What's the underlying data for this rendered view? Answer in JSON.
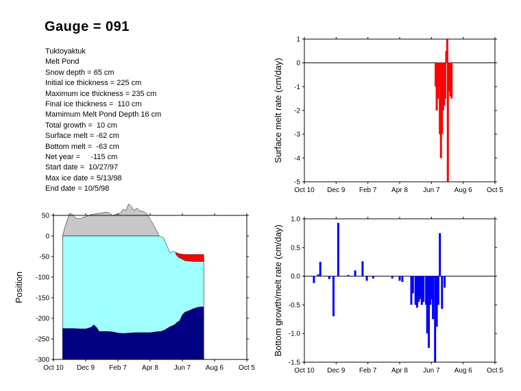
{
  "title": "Gauge = 091",
  "info_lines": [
    "Tuktoyaktuk",
    "Melt Pond",
    "Snow depth = 65 cm",
    "Initial ice thickness = 225 cm",
    "Maximum ice thickness = 235 cm",
    "Final ice thickness =  110 cm",
    "Mamimum Melt Pond Depth 16 cm",
    "Total growth =  10 cm",
    "Surface melt = -62 cm",
    "Bottom melt =  -63 cm",
    "Net year =     -115 cm",
    "Start date =  10/27/97",
    "Max ice date = 5/13/98",
    "End date = 10/5/98"
  ],
  "colors": {
    "snow": "#c8c8c8",
    "ice": "#a0ffff",
    "bottom": "#000080",
    "pond": "#ff0000",
    "surface_bars": "#ff0000",
    "bottom_bars": "#0000ff"
  },
  "chart_data": [
    {
      "type": "area",
      "id": "position",
      "ylabel": "Position",
      "x_ticks": [
        "Oct 10",
        "Dec 9",
        "Feb 7",
        "Apr 8",
        "Jun 7",
        "Aug 6",
        "Oct 5"
      ],
      "x_range_days": [
        0,
        360
      ],
      "ylim": [
        -300,
        50
      ],
      "y_ticks": [
        50,
        0,
        -50,
        -100,
        -150,
        -200,
        -250,
        -300
      ],
      "series": {
        "snow_top": [
          [
            17,
            0
          ],
          [
            22,
            25
          ],
          [
            30,
            55
          ],
          [
            36,
            52
          ],
          [
            40,
            45
          ],
          [
            45,
            42
          ],
          [
            50,
            42
          ],
          [
            55,
            45
          ],
          [
            62,
            48
          ],
          [
            70,
            52
          ],
          [
            85,
            55
          ],
          [
            100,
            58
          ],
          [
            105,
            55
          ],
          [
            110,
            50
          ],
          [
            125,
            56
          ],
          [
            130,
            65
          ],
          [
            135,
            62
          ],
          [
            140,
            78
          ],
          [
            145,
            72
          ],
          [
            150,
            62
          ],
          [
            155,
            68
          ],
          [
            160,
            62
          ],
          [
            165,
            60
          ],
          [
            170,
            58
          ],
          [
            175,
            52
          ],
          [
            180,
            40
          ],
          [
            185,
            30
          ],
          [
            190,
            18
          ],
          [
            195,
            5
          ],
          [
            197,
            0
          ]
        ],
        "ice_top": [
          [
            17,
            0
          ],
          [
            197,
            0
          ],
          [
            205,
            -5
          ],
          [
            210,
            -20
          ],
          [
            215,
            -35
          ],
          [
            218,
            -42
          ],
          [
            220,
            -40
          ],
          [
            222,
            -37
          ],
          [
            228,
            -40
          ],
          [
            233,
            -45
          ],
          [
            240,
            -47
          ],
          [
            260,
            -48
          ],
          [
            270,
            -49
          ],
          [
            280,
            -50
          ]
        ],
        "pond_top": [
          [
            228,
            -40
          ],
          [
            233,
            -43
          ],
          [
            238,
            -44
          ],
          [
            245,
            -45
          ],
          [
            260,
            -45
          ],
          [
            270,
            -45
          ],
          [
            280,
            -45
          ]
        ],
        "pond_bottom": [
          [
            228,
            -45
          ],
          [
            233,
            -52
          ],
          [
            238,
            -55
          ],
          [
            245,
            -60
          ],
          [
            260,
            -62
          ],
          [
            270,
            -62
          ],
          [
            280,
            -62
          ]
        ],
        "ice_bottom": [
          [
            17,
            -225
          ],
          [
            40,
            -225
          ],
          [
            50,
            -226
          ],
          [
            60,
            -226
          ],
          [
            70,
            -222
          ],
          [
            75,
            -216
          ],
          [
            80,
            -222
          ],
          [
            85,
            -232
          ],
          [
            100,
            -232
          ],
          [
            110,
            -233
          ],
          [
            120,
            -236
          ],
          [
            130,
            -237
          ],
          [
            140,
            -236
          ],
          [
            150,
            -235
          ],
          [
            170,
            -235
          ],
          [
            180,
            -235
          ],
          [
            190,
            -233
          ],
          [
            200,
            -232
          ],
          [
            208,
            -228
          ],
          [
            215,
            -222
          ],
          [
            225,
            -216
          ],
          [
            230,
            -210
          ],
          [
            235,
            -206
          ],
          [
            240,
            -192
          ],
          [
            245,
            -185
          ],
          [
            250,
            -183
          ],
          [
            255,
            -180
          ],
          [
            260,
            -177
          ],
          [
            265,
            -175
          ],
          [
            270,
            -173
          ],
          [
            280,
            -172
          ]
        ]
      }
    },
    {
      "type": "bar",
      "id": "surface",
      "ylabel": "Surface melt rate (cm/day)",
      "x_ticks": [
        "Oct 10",
        "Dec 9",
        "Feb 7",
        "Apr 8",
        "Jun 7",
        "Aug 6",
        "Oct 5"
      ],
      "x_range_days": [
        0,
        360
      ],
      "ylim": [
        -5,
        1
      ],
      "y_ticks": [
        1,
        0,
        -1,
        -2,
        -3,
        -4,
        -5
      ],
      "bars": [
        [
          248,
          -1.0
        ],
        [
          250,
          -2.0
        ],
        [
          252,
          -1.5
        ],
        [
          254,
          -1.0
        ],
        [
          256,
          -3.0
        ],
        [
          258,
          -4.0
        ],
        [
          260,
          -3.0
        ],
        [
          262,
          -2.0
        ],
        [
          264,
          -1.8
        ],
        [
          266,
          -1.5
        ],
        [
          268,
          0.5
        ],
        [
          270,
          1.0
        ],
        [
          271,
          -5.0
        ],
        [
          274,
          -1.2
        ],
        [
          276,
          -1.4
        ],
        [
          278,
          -1.5
        ]
      ]
    },
    {
      "type": "bar",
      "id": "bottom",
      "ylabel": "Bottom growth/melt rate (cm/day)",
      "x_ticks": [
        "Oct 10",
        "Dec 9",
        "Feb 7",
        "Apr 8",
        "Jun 7",
        "Aug 6",
        "Oct 5"
      ],
      "x_range_days": [
        0,
        360
      ],
      "ylim": [
        -1.5,
        1.0
      ],
      "y_ticks": [
        1.0,
        0.5,
        0,
        -0.5,
        -1.0,
        -1.5
      ],
      "bars": [
        [
          18,
          -0.12
        ],
        [
          26,
          0.03
        ],
        [
          30,
          0.25
        ],
        [
          47,
          -0.05
        ],
        [
          55,
          -0.7
        ],
        [
          64,
          0.93
        ],
        [
          83,
          0.02
        ],
        [
          96,
          0.1
        ],
        [
          110,
          0.26
        ],
        [
          118,
          -0.08
        ],
        [
          130,
          -0.04
        ],
        [
          166,
          -0.04
        ],
        [
          180,
          -0.08
        ],
        [
          185,
          -0.1
        ],
        [
          202,
          -0.5
        ],
        [
          205,
          -0.3
        ],
        [
          210,
          -0.5
        ],
        [
          213,
          -0.55
        ],
        [
          216,
          -0.45
        ],
        [
          219,
          -0.4
        ],
        [
          222,
          -0.5
        ],
        [
          225,
          -0.45
        ],
        [
          230,
          -0.5
        ],
        [
          232,
          -1.0
        ],
        [
          235,
          -1.25
        ],
        [
          238,
          -0.5
        ],
        [
          240,
          -0.4
        ],
        [
          243,
          -0.75
        ],
        [
          247,
          -1.5
        ],
        [
          250,
          -0.88
        ],
        [
          253,
          -0.5
        ],
        [
          256,
          0.75
        ],
        [
          260,
          -0.57
        ],
        [
          265,
          -0.2
        ]
      ]
    }
  ]
}
